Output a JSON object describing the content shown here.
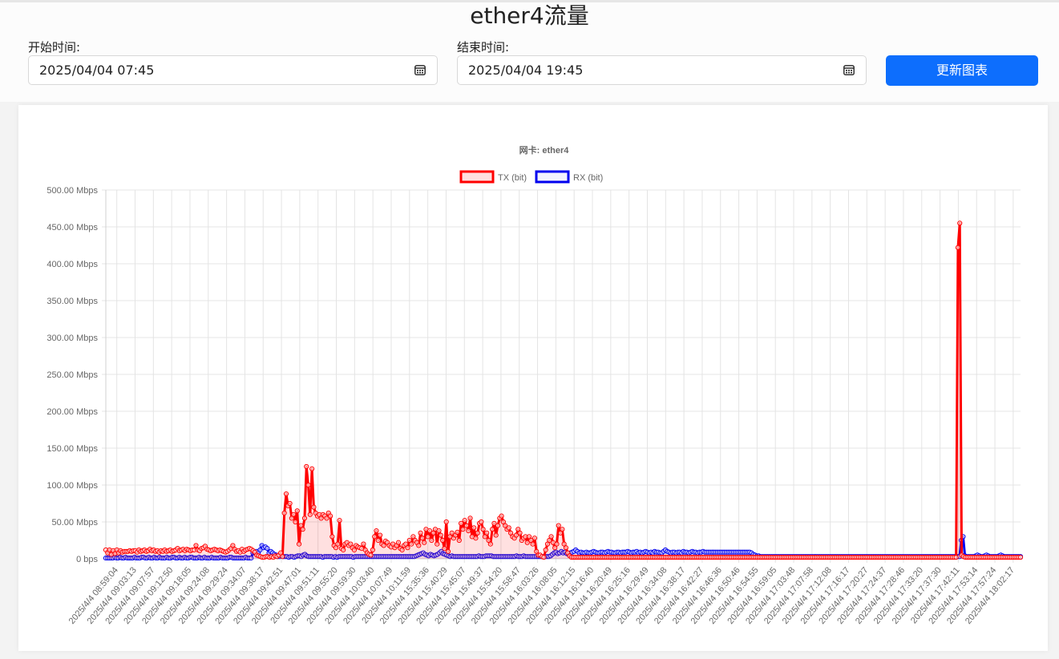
{
  "page": {
    "title": "ether4流量",
    "start_label": "开始时间:",
    "start_value": "2025/04/04 07:45",
    "end_label": "结束时间:",
    "end_value": "2025/04/04 19:45",
    "update_button": "更新图表"
  },
  "chart_data": {
    "type": "line",
    "title": "网卡: ether4",
    "y_ticks": [
      "500.00 Mbps",
      "450.00 Mbps",
      "400.00 Mbps",
      "350.00 Mbps",
      "300.00 Mbps",
      "250.00 Mbps",
      "200.00 Mbps",
      "150.00 Mbps",
      "100.00 Mbps",
      "50.00 Mbps",
      "0 bps"
    ],
    "ylim": [
      0,
      500
    ],
    "y_unit": "Mbps",
    "x_tick_labels": [
      "2025/4/4 08:59:04",
      "2025/4/4 09:03:13",
      "2025/4/4 09:07:57",
      "2025/4/4 09:12:50",
      "2025/4/4 09:18:05",
      "2025/4/4 09:24:08",
      "2025/4/4 09:29:24",
      "2025/4/4 09:34:07",
      "2025/4/4 09:38:17",
      "2025/4/4 09:42:51",
      "2025/4/4 09:47:01",
      "2025/4/4 09:51:11",
      "2025/4/4 09:55:20",
      "2025/4/4 09:59:30",
      "2025/4/4 10:03:40",
      "2025/4/4 10:07:49",
      "2025/4/4 10:11:59",
      "2025/4/4 15:35:36",
      "2025/4/4 15:40:29",
      "2025/4/4 15:45:07",
      "2025/4/4 15:49:37",
      "2025/4/4 15:54:20",
      "2025/4/4 15:58:47",
      "2025/4/4 16:03:26",
      "2025/4/4 16:08:05",
      "2025/4/4 16:12:15",
      "2025/4/4 16:16:40",
      "2025/4/4 16:20:49",
      "2025/4/4 16:25:16",
      "2025/4/4 16:29:49",
      "2025/4/4 16:34:08",
      "2025/4/4 16:38:17",
      "2025/4/4 16:42:27",
      "2025/4/4 16:46:36",
      "2025/4/4 16:50:46",
      "2025/4/4 16:54:55",
      "2025/4/4 16:59:05",
      "2025/4/4 17:03:48",
      "2025/4/4 17:07:58",
      "2025/4/4 17:12:08",
      "2025/4/4 17:16:17",
      "2025/4/4 17:20:27",
      "2025/4/4 17:24:37",
      "2025/4/4 17:28:46",
      "2025/4/4 17:33:20",
      "2025/4/4 17:37:30",
      "2025/4/4 17:42:11",
      "2025/4/4 17:53:14",
      "2025/4/4 17:57:24",
      "2025/4/4 18:02:17"
    ],
    "legend_position": "top-center",
    "grid": true,
    "series": [
      {
        "name": "TX (bit)",
        "color": "#ff0000",
        "fill": "rgba(255,0,0,0.12)",
        "values": [
          12,
          8,
          12,
          6,
          11,
          7,
          12,
          8,
          11,
          9,
          10,
          10,
          10,
          11,
          10,
          11,
          11,
          9,
          12,
          10,
          11,
          12,
          10,
          11,
          13,
          11,
          12,
          10,
          11,
          9,
          11,
          10,
          12,
          10,
          11,
          12,
          10,
          11,
          12,
          14,
          11,
          12,
          13,
          11,
          13,
          12,
          11,
          12,
          12,
          18,
          12,
          11,
          14,
          15,
          17,
          13,
          12,
          11,
          12,
          13,
          12,
          11,
          12,
          11,
          10,
          9,
          10,
          12,
          14,
          18,
          13,
          10,
          11,
          9,
          13,
          10,
          12,
          13,
          14,
          13,
          11,
          9,
          5,
          4,
          3,
          2,
          2,
          3,
          3,
          2,
          3,
          2,
          4,
          3,
          5,
          8,
          3,
          62,
          88,
          72,
          75,
          55,
          60,
          50,
          65,
          20,
          45,
          40,
          55,
          125,
          100,
          60,
          122,
          70,
          62,
          58,
          60,
          55,
          60,
          58,
          55,
          62,
          58,
          30,
          18,
          15,
          20,
          52,
          14,
          12,
          20,
          22,
          18,
          20,
          15,
          12,
          18,
          16,
          15,
          14,
          20,
          12,
          8,
          6,
          5,
          12,
          30,
          38,
          25,
          32,
          20,
          18,
          24,
          22,
          18,
          16,
          20,
          15,
          18,
          22,
          14,
          12,
          18,
          20,
          15,
          25,
          20,
          30,
          25,
          22,
          18,
          35,
          28,
          22,
          40,
          30,
          38,
          25,
          35,
          40,
          20,
          38,
          32,
          25,
          14,
          50,
          10,
          30,
          35,
          28,
          32,
          36,
          25,
          48,
          40,
          52,
          45,
          38,
          55,
          30,
          42,
          28,
          35,
          48,
          50,
          40,
          30,
          35,
          25,
          20,
          40,
          48,
          32,
          45,
          55,
          58,
          50,
          45,
          40,
          42,
          35,
          30,
          28,
          32,
          40,
          35,
          25,
          28,
          30,
          22,
          30,
          25,
          20,
          28,
          10,
          5,
          5,
          3,
          2,
          12,
          20,
          25,
          30,
          22,
          15,
          20,
          45,
          35,
          40,
          20,
          15,
          8,
          4,
          2,
          2,
          2,
          2,
          2,
          2,
          2,
          2,
          2,
          2,
          2,
          2,
          2,
          2,
          2,
          2,
          2,
          2,
          2,
          2,
          2,
          2,
          2,
          2,
          2,
          2,
          2,
          2,
          2,
          2,
          2,
          2,
          2,
          2,
          2,
          2,
          2,
          2,
          2,
          2,
          2,
          2,
          2,
          2,
          2,
          2,
          2,
          2,
          2,
          2,
          2,
          2,
          2,
          2,
          2,
          2,
          2,
          2,
          2,
          2,
          2,
          2,
          2,
          2,
          2,
          2,
          2,
          2,
          2,
          2,
          2,
          2,
          2,
          2,
          2,
          2,
          2,
          2,
          2,
          2,
          2,
          2,
          2,
          2,
          2,
          2,
          2,
          2,
          2,
          2,
          2,
          2,
          2,
          2,
          2,
          2,
          2,
          2,
          2,
          2,
          2,
          2,
          2,
          2,
          2,
          2,
          2,
          2,
          2,
          2,
          2,
          2,
          2,
          2,
          2,
          2,
          2,
          2,
          2,
          2,
          2,
          2,
          2,
          2,
          2,
          2,
          2,
          2,
          2,
          2,
          2,
          2,
          2,
          2,
          2,
          2,
          2,
          2,
          2,
          2,
          2,
          2,
          2,
          2,
          2,
          2,
          2,
          2,
          2,
          2,
          2,
          2,
          2,
          2,
          2,
          2,
          2,
          2,
          2,
          2,
          2,
          2,
          2,
          2,
          2,
          2,
          2,
          2,
          2,
          2,
          2,
          2,
          2,
          2,
          2,
          2,
          2,
          2,
          2,
          2,
          2,
          2,
          2,
          2,
          2,
          2,
          2,
          2,
          2,
          2,
          2,
          2,
          2,
          2,
          2,
          2,
          2,
          2,
          2,
          2,
          2,
          2,
          2,
          2,
          2,
          2,
          2,
          2,
          2,
          2,
          422,
          455,
          5,
          3,
          2,
          2,
          2,
          2,
          2,
          2,
          2,
          2,
          2,
          2,
          2,
          2,
          2,
          2,
          2,
          2,
          2,
          2,
          2,
          2,
          2,
          2,
          2,
          2,
          2,
          2,
          2,
          2,
          2,
          2,
          2
        ]
      },
      {
        "name": "RX (bit)",
        "color": "#0000ee",
        "fill": "rgba(0,0,238,0.05)",
        "values": [
          1,
          1,
          1,
          1,
          1,
          2,
          1,
          1,
          2,
          1,
          1,
          2,
          1,
          1,
          1,
          1,
          2,
          1,
          1,
          1,
          2,
          2,
          1,
          1,
          2,
          1,
          1,
          2,
          1,
          1,
          2,
          1,
          1,
          1,
          2,
          1,
          1,
          2,
          2,
          1,
          1,
          2,
          1,
          1,
          2,
          1,
          1,
          2,
          2,
          1,
          1,
          1,
          2,
          1,
          1,
          2,
          1,
          1,
          1,
          2,
          1,
          1,
          1,
          1,
          2,
          1,
          1,
          1,
          1,
          2,
          2,
          1,
          1,
          1,
          1,
          1,
          1,
          1,
          2,
          1,
          1,
          1,
          8,
          8,
          10,
          8,
          12,
          18,
          15,
          16,
          14,
          8,
          10,
          8,
          6,
          5,
          3,
          3,
          4,
          3,
          3,
          3,
          2,
          3,
          3,
          2,
          3,
          4,
          4,
          3,
          5,
          6,
          4,
          3,
          3,
          3,
          3,
          3,
          3,
          3,
          3,
          2,
          3,
          3,
          3,
          3,
          3,
          2,
          3,
          2,
          3,
          3,
          3,
          3,
          3,
          3,
          3,
          3,
          2,
          3,
          3,
          3,
          3,
          3,
          3,
          3,
          3,
          3,
          3,
          3,
          3,
          3,
          3,
          3,
          3,
          3,
          3,
          3,
          3,
          3,
          3,
          3,
          3,
          3,
          3,
          3,
          3,
          3,
          3,
          3,
          3,
          3,
          3,
          4,
          5,
          6,
          7,
          8,
          6,
          5,
          4,
          6,
          5,
          4,
          5,
          6,
          8,
          10,
          7,
          6,
          5,
          4,
          3,
          4,
          3,
          3,
          3,
          3,
          3,
          3,
          3,
          3,
          3,
          3,
          3,
          3,
          3,
          3,
          4,
          3,
          3,
          3,
          4,
          4,
          4,
          4,
          3,
          3,
          3,
          3,
          3,
          3,
          3,
          3,
          3,
          3,
          3,
          3,
          3,
          4,
          3,
          3,
          3,
          4,
          3,
          3,
          3,
          3,
          3,
          3,
          3,
          3,
          3,
          3,
          3,
          3,
          3,
          3,
          4,
          6,
          8,
          9,
          7,
          8,
          10,
          8,
          9,
          7,
          6,
          8,
          9,
          10,
          12,
          10,
          8,
          9,
          8,
          8,
          9,
          8,
          8,
          9,
          10,
          9,
          8,
          8,
          9,
          9,
          8,
          9,
          10,
          9,
          9,
          8,
          8,
          9,
          9,
          8,
          9,
          9,
          9,
          10,
          9,
          8,
          9,
          9,
          10,
          8,
          9,
          8,
          9,
          10,
          9,
          8,
          9,
          8,
          10,
          9,
          9,
          8,
          8,
          10,
          12,
          10,
          9,
          8,
          9,
          9,
          8,
          9,
          9,
          8,
          10,
          9,
          9,
          8,
          9,
          10,
          9,
          9,
          8,
          9,
          9,
          10,
          9,
          9,
          9,
          9,
          9,
          9,
          9,
          9,
          9,
          9,
          9,
          9,
          9,
          9,
          9,
          9,
          9,
          9,
          9,
          9,
          9,
          9,
          9,
          9,
          9,
          9,
          8,
          6,
          5,
          4,
          4,
          3,
          3,
          3,
          3,
          3,
          3,
          3,
          3,
          3,
          3,
          3,
          3,
          3,
          3,
          3,
          3,
          3,
          3,
          3,
          3,
          3,
          3,
          3,
          3,
          3,
          3,
          3,
          3,
          3,
          3,
          3,
          3,
          3,
          3,
          3,
          3,
          3,
          3,
          3,
          3,
          3,
          3,
          3,
          3,
          3,
          3,
          3,
          3,
          3,
          3,
          3,
          3,
          3,
          3,
          3,
          3,
          3,
          3,
          3,
          3,
          3,
          3,
          3,
          3,
          3,
          3,
          3,
          3,
          3,
          3,
          3,
          3,
          3,
          3,
          3,
          3,
          3,
          3,
          3,
          3,
          3,
          3,
          3,
          3,
          3,
          3,
          3,
          3,
          3,
          3,
          3,
          3,
          3,
          3,
          3,
          3,
          3,
          3,
          3,
          3,
          3,
          3,
          3,
          3,
          3,
          3,
          3,
          3,
          3,
          3,
          3,
          3,
          25,
          30,
          4,
          3,
          3,
          3,
          3,
          3,
          4,
          5,
          4,
          3,
          3,
          4,
          5,
          4,
          3,
          3,
          3,
          3,
          3,
          4,
          5,
          4,
          3,
          3,
          3,
          3,
          3,
          3,
          3,
          3,
          3,
          3
        ]
      }
    ]
  }
}
